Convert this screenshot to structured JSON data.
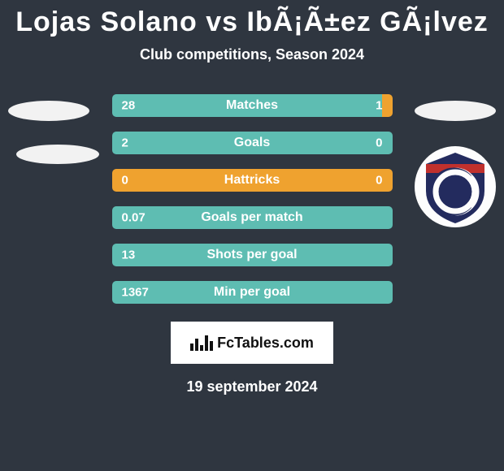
{
  "title": "Lojas Solano vs IbÃ¡Ã±ez GÃ¡lvez",
  "subtitle": "Club competitions, Season 2024",
  "date": "19 september 2024",
  "footer_brand": "FcTables.com",
  "colors": {
    "background": "#2f3640",
    "left_bar": "#5ebdb2",
    "right_bar": "#efa22f",
    "text": "#ffffff",
    "brand_bg": "#ffffff",
    "brand_text": "#111111"
  },
  "bars": [
    {
      "label": "Matches",
      "left": "28",
      "right": "1",
      "left_pct": 96.5
    },
    {
      "label": "Goals",
      "left": "2",
      "right": "0",
      "left_pct": 100
    },
    {
      "label": "Hattricks",
      "left": "0",
      "right": "0",
      "left_pct": 0
    },
    {
      "label": "Goals per match",
      "left": "0.07",
      "right": "",
      "left_pct": 100
    },
    {
      "label": "Shots per goal",
      "left": "13",
      "right": "",
      "left_pct": 100
    },
    {
      "label": "Min per goal",
      "left": "1367",
      "right": "",
      "left_pct": 100
    }
  ],
  "shield": {
    "bg": "#fdfdfd",
    "crest": "#232b5e",
    "letter": "C",
    "band": "#c0302d"
  }
}
